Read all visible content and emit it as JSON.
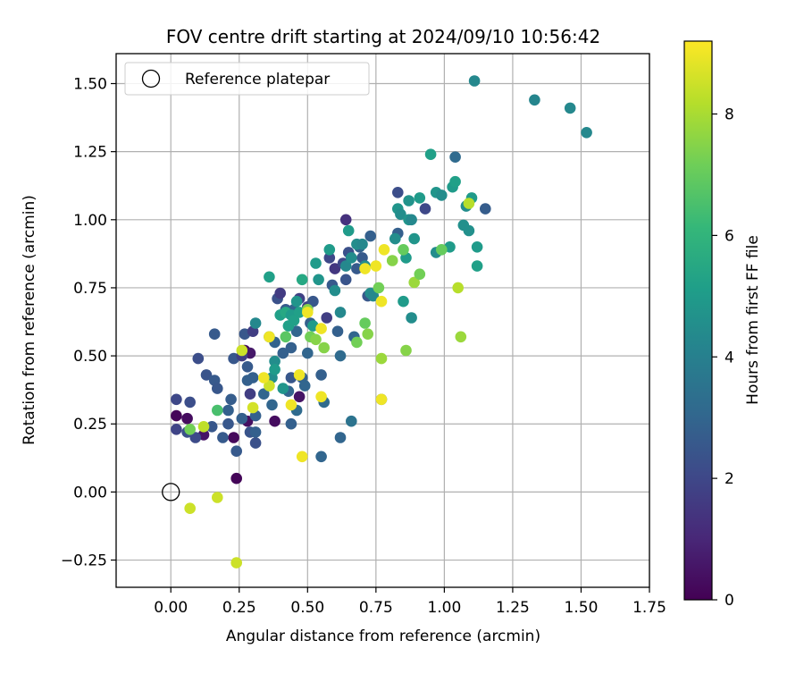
{
  "chart_data": {
    "type": "scatter",
    "title": "FOV centre drift starting at 2024/09/10 10:56:42",
    "xlabel": "Angular distance from reference (arcmin)",
    "ylabel": "Rotation from reference (arcmin)",
    "xlim": [
      -0.2,
      1.75
    ],
    "ylim": [
      -0.35,
      1.61
    ],
    "xticks": [
      0.0,
      0.25,
      0.5,
      0.75,
      1.0,
      1.25,
      1.5,
      1.75
    ],
    "xtick_labels": [
      "0.00",
      "0.25",
      "0.50",
      "0.75",
      "1.00",
      "1.25",
      "1.50",
      "1.75"
    ],
    "yticks": [
      -0.25,
      0.0,
      0.25,
      0.5,
      0.75,
      1.0,
      1.25,
      1.5
    ],
    "ytick_labels": [
      "−0.25",
      "0.00",
      "0.25",
      "0.50",
      "0.75",
      "1.00",
      "1.25",
      "1.50"
    ],
    "grid": true,
    "legend": {
      "placement": "top-left",
      "entries": [
        "Reference platepar"
      ]
    },
    "reference_point": {
      "x": 0.0,
      "y": 0.0,
      "marker": "open-circle"
    },
    "colorbar": {
      "label": "Hours from first FF file",
      "range": [
        0,
        9.2
      ],
      "ticks": [
        0,
        2,
        4,
        6,
        8
      ],
      "colormap": "viridis",
      "colormap_stops": [
        "#440154",
        "#482878",
        "#3e4989",
        "#31688e",
        "#26828e",
        "#1f9e89",
        "#35b779",
        "#6ece58",
        "#b5de2b",
        "#fde725"
      ]
    },
    "marker_color_encodes": "hours",
    "points": [
      [
        0.02,
        0.28,
        0.1
      ],
      [
        0.06,
        0.27,
        0.3
      ],
      [
        0.12,
        0.21,
        0.5
      ],
      [
        0.23,
        0.2,
        0.2
      ],
      [
        0.24,
        0.05,
        0.1
      ],
      [
        0.28,
        0.26,
        0.4
      ],
      [
        0.27,
        0.52,
        0.2
      ],
      [
        0.29,
        0.51,
        0.6
      ],
      [
        0.38,
        0.26,
        0.3
      ],
      [
        0.47,
        0.35,
        0.5
      ],
      [
        0.02,
        0.34,
        2.0
      ],
      [
        0.02,
        0.23,
        1.9
      ],
      [
        0.06,
        0.22,
        2.3
      ],
      [
        0.07,
        0.33,
        2.2
      ],
      [
        0.09,
        0.2,
        2.1
      ],
      [
        0.1,
        0.49,
        2.2
      ],
      [
        0.13,
        0.43,
        2.4
      ],
      [
        0.15,
        0.24,
        2.5
      ],
      [
        0.16,
        0.41,
        2.6
      ],
      [
        0.17,
        0.38,
        2.5
      ],
      [
        0.16,
        0.58,
        2.6
      ],
      [
        0.19,
        0.2,
        2.6
      ],
      [
        0.21,
        0.3,
        2.8
      ],
      [
        0.21,
        0.25,
        2.5
      ],
      [
        0.22,
        0.34,
        2.7
      ],
      [
        0.23,
        0.49,
        2.5
      ],
      [
        0.24,
        0.15,
        2.6
      ],
      [
        0.26,
        0.27,
        2.8
      ],
      [
        0.26,
        0.5,
        1.7
      ],
      [
        0.27,
        0.58,
        2.5
      ],
      [
        0.28,
        0.46,
        2.6
      ],
      [
        0.28,
        0.41,
        2.8
      ],
      [
        0.29,
        0.22,
        2.4
      ],
      [
        0.29,
        0.36,
        1.7
      ],
      [
        0.3,
        0.59,
        1.7
      ],
      [
        0.3,
        0.42,
        2.8
      ],
      [
        0.31,
        0.18,
        2.3
      ],
      [
        0.31,
        0.28,
        2.8
      ],
      [
        0.31,
        0.22,
        2.8
      ],
      [
        0.34,
        0.36,
        3.0
      ],
      [
        0.37,
        0.32,
        3.0
      ],
      [
        0.38,
        0.55,
        2.9
      ],
      [
        0.39,
        0.71,
        2.3
      ],
      [
        0.4,
        0.73,
        1.6
      ],
      [
        0.41,
        0.51,
        2.8
      ],
      [
        0.42,
        0.67,
        2.6
      ],
      [
        0.43,
        0.37,
        3.0
      ],
      [
        0.44,
        0.25,
        2.8
      ],
      [
        0.44,
        0.42,
        2.5
      ],
      [
        0.44,
        0.53,
        2.8
      ],
      [
        0.45,
        0.67,
        3.0
      ],
      [
        0.46,
        0.59,
        3.0
      ],
      [
        0.46,
        0.3,
        3.2
      ],
      [
        0.47,
        0.71,
        1.8
      ],
      [
        0.48,
        0.42,
        2.8
      ],
      [
        0.49,
        0.39,
        3.0
      ],
      [
        0.5,
        0.51,
        3.0
      ],
      [
        0.5,
        0.68,
        1.8
      ],
      [
        0.51,
        0.62,
        2.8
      ],
      [
        0.52,
        0.7,
        2.5
      ],
      [
        0.55,
        0.13,
        3.0
      ],
      [
        0.55,
        0.43,
        2.8
      ],
      [
        0.56,
        0.33,
        3.2
      ],
      [
        0.57,
        0.64,
        1.7
      ],
      [
        0.58,
        0.86,
        2.0
      ],
      [
        0.59,
        0.76,
        2.6
      ],
      [
        0.6,
        0.82,
        1.5
      ],
      [
        0.61,
        0.59,
        2.8
      ],
      [
        0.62,
        0.2,
        3.0
      ],
      [
        0.62,
        0.5,
        3.2
      ],
      [
        0.63,
        0.84,
        2.0
      ],
      [
        0.64,
        1.0,
        1.3
      ],
      [
        0.64,
        0.78,
        2.4
      ],
      [
        0.65,
        0.88,
        2.3
      ],
      [
        0.66,
        0.26,
        3.5
      ],
      [
        0.67,
        0.57,
        3.0
      ],
      [
        0.68,
        0.82,
        2.6
      ],
      [
        0.69,
        0.9,
        2.8
      ],
      [
        0.7,
        0.86,
        2.6
      ],
      [
        0.72,
        0.72,
        2.5
      ],
      [
        0.73,
        0.94,
        2.8
      ],
      [
        0.77,
        0.34,
        3.2
      ],
      [
        0.83,
        1.1,
        2.2
      ],
      [
        0.83,
        0.95,
        2.8
      ],
      [
        0.88,
        0.64,
        4.5
      ],
      [
        0.93,
        1.04,
        2.0
      ],
      [
        1.04,
        1.23,
        3.2
      ],
      [
        1.15,
        1.04,
        2.7
      ],
      [
        1.11,
        1.51,
        4.3
      ],
      [
        1.33,
        1.44,
        4.2
      ],
      [
        1.46,
        1.41,
        4.3
      ],
      [
        1.52,
        1.32,
        4.3
      ],
      [
        0.31,
        0.62,
        4.3
      ],
      [
        0.36,
        0.57,
        4.0
      ],
      [
        0.37,
        0.42,
        4.5
      ],
      [
        0.38,
        0.48,
        4.5
      ],
      [
        0.36,
        0.79,
        5.2
      ],
      [
        0.38,
        0.45,
        5.0
      ],
      [
        0.4,
        0.65,
        5.2
      ],
      [
        0.41,
        0.38,
        4.8
      ],
      [
        0.42,
        0.66,
        5.5
      ],
      [
        0.43,
        0.61,
        5.2
      ],
      [
        0.44,
        0.65,
        5.0
      ],
      [
        0.45,
        0.63,
        5.2
      ],
      [
        0.46,
        0.7,
        4.8
      ],
      [
        0.47,
        0.66,
        5.2
      ],
      [
        0.48,
        0.78,
        5.5
      ],
      [
        0.52,
        0.61,
        5.0
      ],
      [
        0.53,
        0.84,
        5.0
      ],
      [
        0.54,
        0.78,
        4.8
      ],
      [
        0.58,
        0.89,
        5.0
      ],
      [
        0.6,
        0.74,
        4.5
      ],
      [
        0.62,
        0.66,
        4.3
      ],
      [
        0.64,
        0.83,
        4.3
      ],
      [
        0.65,
        0.96,
        5.0
      ],
      [
        0.66,
        0.86,
        4.5
      ],
      [
        0.68,
        0.91,
        4.5
      ],
      [
        0.7,
        0.91,
        4.3
      ],
      [
        0.71,
        0.83,
        4.5
      ],
      [
        0.73,
        0.73,
        4.5
      ],
      [
        0.74,
        0.72,
        4.3
      ],
      [
        0.82,
        0.93,
        4.5
      ],
      [
        0.83,
        1.04,
        4.8
      ],
      [
        0.84,
        1.02,
        4.5
      ],
      [
        0.86,
        0.86,
        5.0
      ],
      [
        0.87,
        1.0,
        4.8
      ],
      [
        0.87,
        1.07,
        4.7
      ],
      [
        0.88,
        1.0,
        4.3
      ],
      [
        0.89,
        0.93,
        4.8
      ],
      [
        0.91,
        1.08,
        5.0
      ],
      [
        0.95,
        1.24,
        5.2
      ],
      [
        0.97,
        1.1,
        4.8
      ],
      [
        0.97,
        0.88,
        4.5
      ],
      [
        0.99,
        1.09,
        4.5
      ],
      [
        1.02,
        0.9,
        5.0
      ],
      [
        1.03,
        1.12,
        5.0
      ],
      [
        1.04,
        1.14,
        5.2
      ],
      [
        1.07,
        0.98,
        4.6
      ],
      [
        1.08,
        1.05,
        4.5
      ],
      [
        1.09,
        0.96,
        4.6
      ],
      [
        1.1,
        1.08,
        5.0
      ],
      [
        1.12,
        0.83,
        5.2
      ],
      [
        1.12,
        0.9,
        5.0
      ],
      [
        0.85,
        0.7,
        5.0
      ],
      [
        0.17,
        0.3,
        6.5
      ],
      [
        0.42,
        0.57,
        6.8
      ],
      [
        0.5,
        0.67,
        7.5
      ],
      [
        0.51,
        0.57,
        7.2
      ],
      [
        0.53,
        0.56,
        7.5
      ],
      [
        0.56,
        0.53,
        7.5
      ],
      [
        0.68,
        0.55,
        7.2
      ],
      [
        0.71,
        0.62,
        7.0
      ],
      [
        0.72,
        0.58,
        7.5
      ],
      [
        0.76,
        0.75,
        7.2
      ],
      [
        0.77,
        0.49,
        7.8
      ],
      [
        0.81,
        0.85,
        7.5
      ],
      [
        0.85,
        0.89,
        7.0
      ],
      [
        0.86,
        0.52,
        7.5
      ],
      [
        0.89,
        0.77,
        7.8
      ],
      [
        0.91,
        0.8,
        7.2
      ],
      [
        0.99,
        0.89,
        7.0
      ],
      [
        1.05,
        0.75,
        8.2
      ],
      [
        1.06,
        0.57,
        7.8
      ],
      [
        1.09,
        1.06,
        8.2
      ],
      [
        0.07,
        0.23,
        7.2
      ],
      [
        0.36,
        0.39,
        8.5
      ],
      [
        0.26,
        0.52,
        8.5
      ],
      [
        0.12,
        0.24,
        8.3
      ],
      [
        0.07,
        -0.06,
        8.5
      ],
      [
        0.17,
        -0.02,
        8.5
      ],
      [
        0.24,
        -0.26,
        8.5
      ],
      [
        0.3,
        0.31,
        8.6
      ],
      [
        0.34,
        0.42,
        9.0
      ],
      [
        0.36,
        0.57,
        9.0
      ],
      [
        0.44,
        0.32,
        9.0
      ],
      [
        0.47,
        0.43,
        9.0
      ],
      [
        0.48,
        0.13,
        9.0
      ],
      [
        0.5,
        0.66,
        9.0
      ],
      [
        0.55,
        0.35,
        9.0
      ],
      [
        0.55,
        0.6,
        9.0
      ],
      [
        0.75,
        0.83,
        9.0
      ],
      [
        0.77,
        0.7,
        9.0
      ],
      [
        0.77,
        0.34,
        9.0
      ],
      [
        0.78,
        0.89,
        9.0
      ],
      [
        0.71,
        0.82,
        9.0
      ]
    ]
  }
}
